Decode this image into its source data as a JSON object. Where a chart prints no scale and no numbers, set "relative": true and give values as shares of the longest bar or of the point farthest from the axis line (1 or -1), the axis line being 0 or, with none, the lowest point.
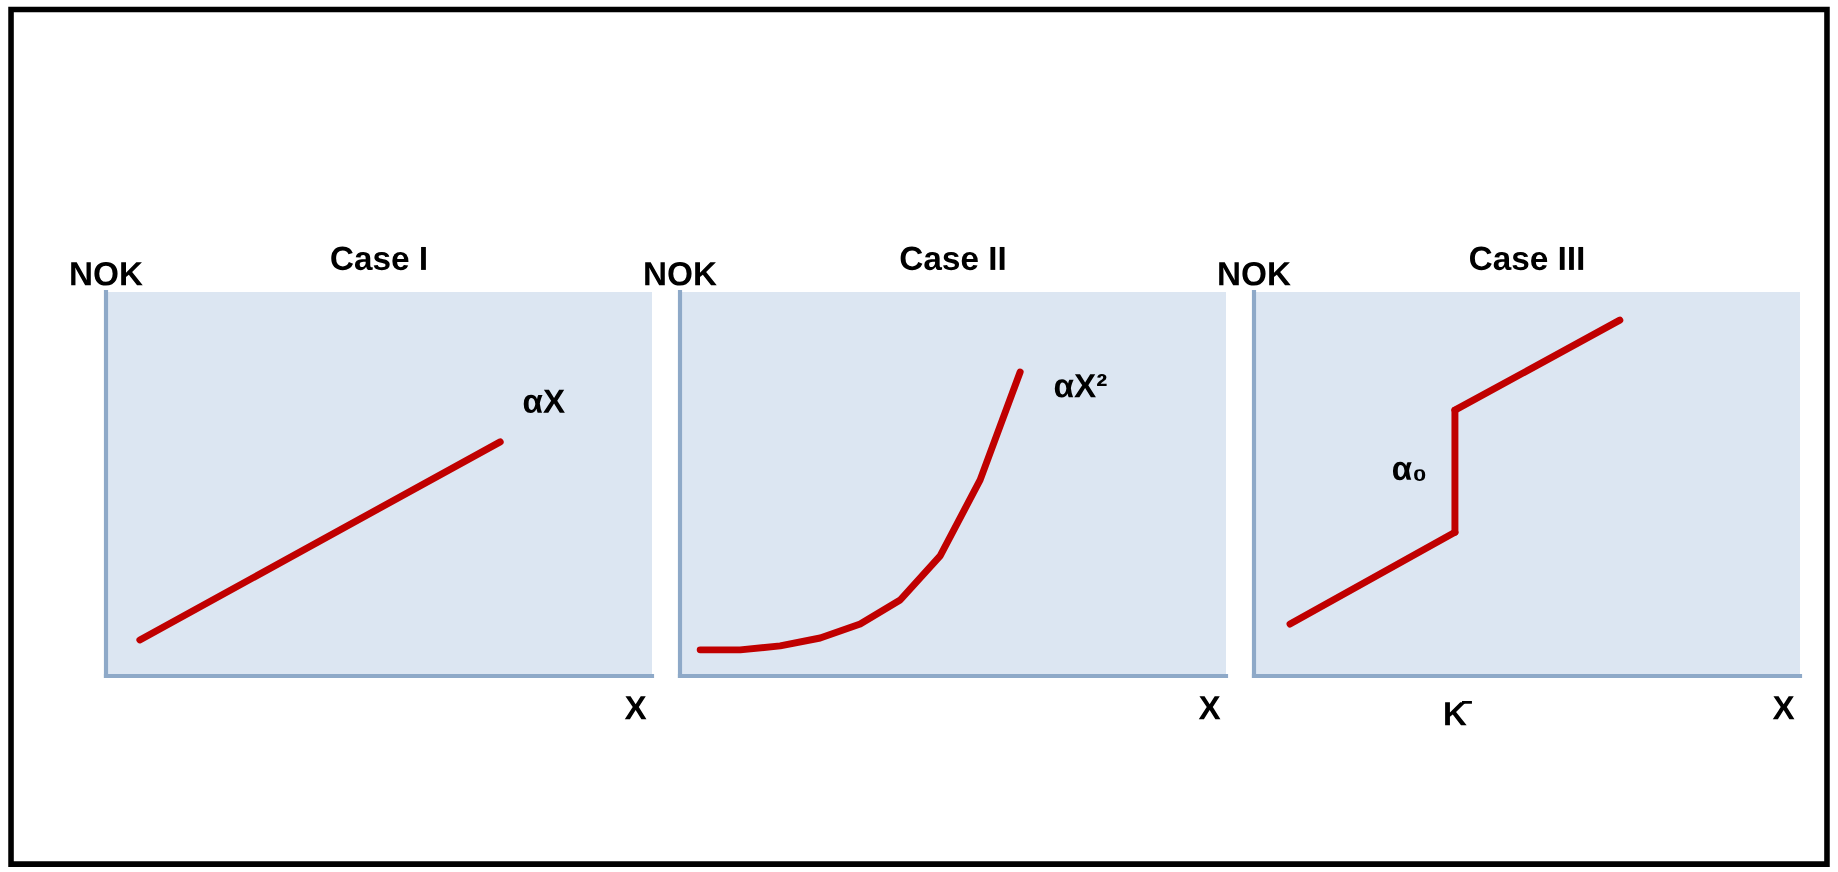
{
  "chart_data": [
    {
      "type": "line",
      "title": "Case I",
      "ylabel": "NOK",
      "xlabel": "X",
      "relative": true,
      "categories": [
        null,
        null
      ],
      "annotations": [
        "αX"
      ],
      "series": [
        {
          "color": "#c00000",
          "values": [
            0.154,
            1
          ]
        }
      ]
    },
    {
      "type": "line",
      "title": "Case II",
      "ylabel": "NOK",
      "xlabel": "X",
      "relative": true,
      "categories": [
        null,
        null,
        null,
        null,
        null,
        null,
        null,
        null,
        null
      ],
      "annotations": [
        "αX²"
      ],
      "series": [
        {
          "color": "#c00000",
          "values": [
            0.086,
            0.086,
            0.099,
            0.125,
            0.171,
            0.25,
            0.395,
            0.645,
            1
          ]
        }
      ]
    },
    {
      "type": "line",
      "title": "Case III",
      "ylabel": "NOK",
      "xlabel": "X",
      "relative": true,
      "categories": [
        null,
        null,
        null
      ],
      "annotations": [
        "α₀",
        "K̄"
      ],
      "series": [
        {
          "color": "#c00000",
          "values": [
            0.146,
            0.404,
            null
          ]
        },
        {
          "color": "#c00000",
          "values": [
            null,
            0.747,
            1
          ]
        }
      ]
    }
  ]
}
